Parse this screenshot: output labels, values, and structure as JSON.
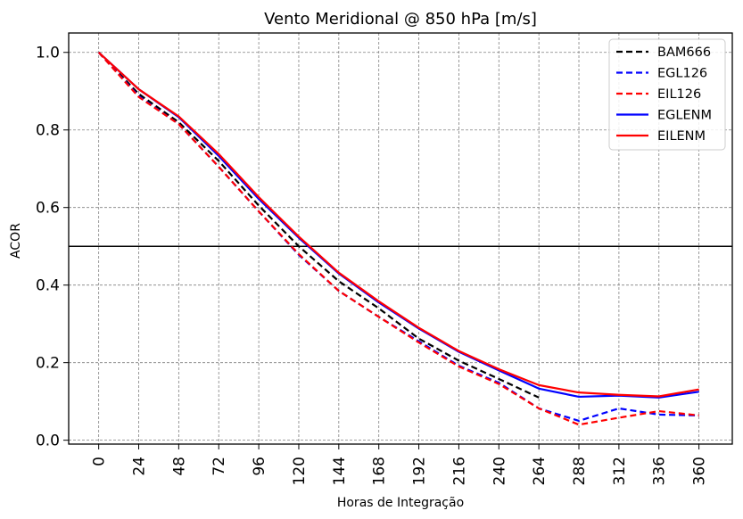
{
  "chart_data": {
    "type": "line",
    "title": "Vento Meridional @ 850 hPa [m/s]",
    "xlabel": "Horas de Integração",
    "ylabel": "ACOR",
    "x": [
      0,
      24,
      48,
      72,
      96,
      120,
      144,
      168,
      192,
      216,
      240,
      264,
      288,
      312,
      336,
      360
    ],
    "xticks": [
      "0",
      "24",
      "48",
      "72",
      "96",
      "120",
      "144",
      "168",
      "192",
      "216",
      "240",
      "264",
      "288",
      "312",
      "336",
      "360"
    ],
    "yticks": [
      "0.0",
      "0.2",
      "0.4",
      "0.6",
      "0.8",
      "1.0"
    ],
    "xlim": [
      -18,
      380
    ],
    "ylim": [
      -0.01,
      1.05
    ],
    "grid": true,
    "reference_line": 0.5,
    "legend_position": "top-right",
    "series": [
      {
        "name": "BAM666",
        "color": "#000000",
        "style": "dashed",
        "values": [
          1.0,
          0.893,
          0.82,
          0.72,
          0.605,
          0.5,
          0.41,
          0.34,
          0.262,
          0.205,
          0.158,
          0.11,
          null,
          null,
          null,
          null
        ]
      },
      {
        "name": "EGL126",
        "color": "#0000ff",
        "style": "dashed",
        "values": [
          1.0,
          0.887,
          0.815,
          0.705,
          0.59,
          0.478,
          0.385,
          0.318,
          0.255,
          0.192,
          0.148,
          0.082,
          0.05,
          0.082,
          0.066,
          0.064
        ]
      },
      {
        "name": "EIL126",
        "color": "#ff0000",
        "style": "dashed",
        "values": [
          1.0,
          0.885,
          0.815,
          0.705,
          0.59,
          0.48,
          0.385,
          0.318,
          0.252,
          0.19,
          0.145,
          0.082,
          0.04,
          0.058,
          0.075,
          0.064
        ]
      },
      {
        "name": "EGLENM",
        "color": "#0000ff",
        "style": "solid",
        "values": [
          1.0,
          0.905,
          0.833,
          0.733,
          0.622,
          0.522,
          0.43,
          0.355,
          0.288,
          0.228,
          0.18,
          0.133,
          0.112,
          0.115,
          0.11,
          0.125
        ]
      },
      {
        "name": "EILENM",
        "color": "#ff0000",
        "style": "solid",
        "values": [
          1.0,
          0.905,
          0.835,
          0.738,
          0.627,
          0.525,
          0.432,
          0.358,
          0.29,
          0.23,
          0.183,
          0.142,
          0.123,
          0.117,
          0.113,
          0.131
        ]
      }
    ]
  }
}
